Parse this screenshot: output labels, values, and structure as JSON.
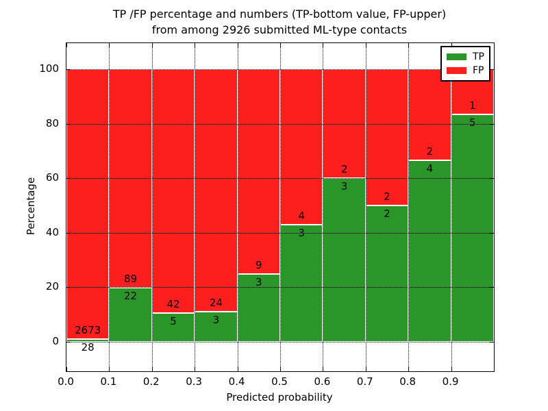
{
  "title": {
    "line1": "TP /FP percentage and numbers (TP-bottom value, FP-upper)",
    "line2": "from among 2926 submitted ML-type contacts"
  },
  "chart_data": {
    "type": "bar",
    "subtype": "stacked-100-percent",
    "title": "TP /FP percentage and numbers (TP-bottom value, FP-upper)\nfrom among 2926 submitted ML-type contacts",
    "xlabel": "Predicted probability",
    "ylabel": "Percentage",
    "x_tick_labels": [
      "0.0",
      "0.1",
      "0.2",
      "0.3",
      "0.4",
      "0.5",
      "0.6",
      "0.7",
      "0.8",
      "0.9"
    ],
    "y_ticks": [
      0,
      20,
      40,
      60,
      80,
      100
    ],
    "xlim": [
      0.0,
      1.0
    ],
    "ylim": [
      -11,
      110
    ],
    "bin_width": 0.1,
    "grid": "dotted black, drawn above bars",
    "total_contacts": 2926,
    "legend": {
      "position": "upper right",
      "entries": [
        {
          "label": "TP",
          "color": "#2a962a"
        },
        {
          "label": "FP",
          "color": "#fd1e1e"
        }
      ]
    },
    "categories": [
      "0.0-0.1",
      "0.1-0.2",
      "0.2-0.3",
      "0.3-0.4",
      "0.4-0.5",
      "0.5-0.6",
      "0.6-0.7",
      "0.7-0.8",
      "0.8-0.9",
      "0.9-1.0"
    ],
    "series": [
      {
        "name": "TP",
        "values": [
          28,
          22,
          5,
          3,
          3,
          3,
          3,
          2,
          4,
          5
        ]
      },
      {
        "name": "FP",
        "values": [
          2673,
          89,
          42,
          24,
          9,
          4,
          2,
          2,
          2,
          1
        ]
      }
    ],
    "bins": [
      {
        "x_start": 0.0,
        "x_end": 0.1,
        "tp": 28,
        "fp": 2673
      },
      {
        "x_start": 0.1,
        "x_end": 0.2,
        "tp": 22,
        "fp": 89
      },
      {
        "x_start": 0.2,
        "x_end": 0.3,
        "tp": 5,
        "fp": 42
      },
      {
        "x_start": 0.3,
        "x_end": 0.4,
        "tp": 3,
        "fp": 24
      },
      {
        "x_start": 0.4,
        "x_end": 0.5,
        "tp": 3,
        "fp": 9
      },
      {
        "x_start": 0.5,
        "x_end": 0.6,
        "tp": 3,
        "fp": 4
      },
      {
        "x_start": 0.6,
        "x_end": 0.7,
        "tp": 3,
        "fp": 2
      },
      {
        "x_start": 0.7,
        "x_end": 0.8,
        "tp": 2,
        "fp": 2
      },
      {
        "x_start": 0.8,
        "x_end": 0.9,
        "tp": 4,
        "fp": 2
      },
      {
        "x_start": 0.9,
        "x_end": 1.0,
        "tp": 5,
        "fp": 1
      }
    ]
  }
}
